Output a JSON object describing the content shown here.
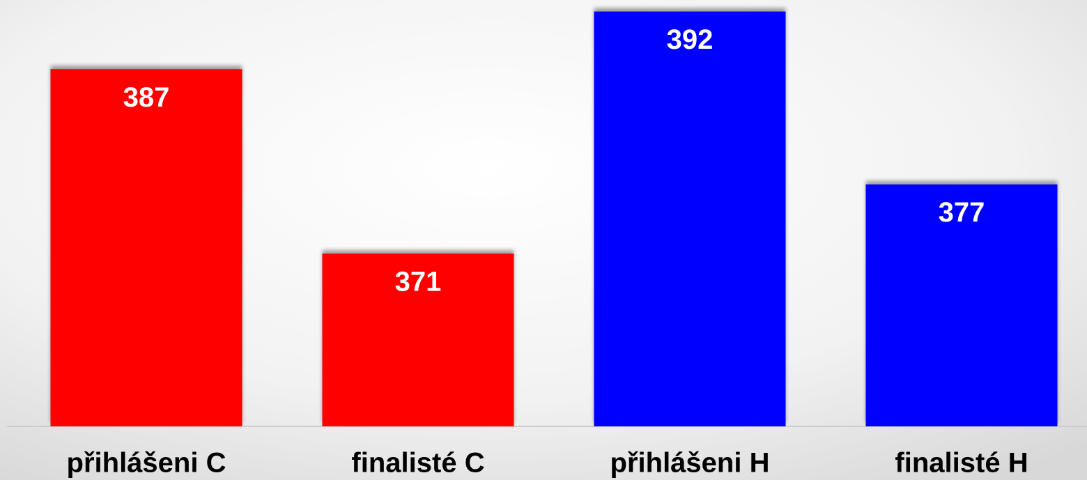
{
  "chart_data": {
    "type": "bar",
    "categories": [
      "přihlášeni C",
      "finalisté C",
      "přihlášeni H",
      "finalisté H"
    ],
    "values": [
      387,
      371,
      392,
      377
    ],
    "colors": [
      "#ff0000",
      "#ff0000",
      "#0000ff",
      "#0000ff"
    ],
    "ylim": [
      356,
      393
    ]
  }
}
